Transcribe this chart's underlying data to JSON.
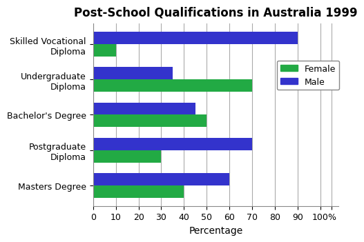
{
  "title": "Post-School Qualifications in Australia 1999",
  "categories": [
    "Skilled Vocational\nDiploma",
    "Undergraduate\nDiploma",
    "Bachelor's Degree",
    "Postgraduate\nDiploma",
    "Masters Degree"
  ],
  "female_values": [
    10,
    70,
    50,
    30,
    40
  ],
  "male_values": [
    90,
    35,
    45,
    70,
    60
  ],
  "female_color": "#22aa44",
  "male_color": "#3333cc",
  "xlabel": "Percentage",
  "xticks": [
    0,
    10,
    20,
    30,
    40,
    50,
    60,
    70,
    80,
    90,
    100
  ],
  "xtick_labels": [
    "0",
    "10",
    "20",
    "30",
    "40",
    "50",
    "60",
    "70",
    "80",
    "90",
    "100",
    "%"
  ],
  "legend_labels": [
    "Female",
    "Male"
  ],
  "title_fontsize": 12,
  "axis_label_fontsize": 10,
  "tick_fontsize": 9,
  "bar_height": 0.35,
  "background_color": "#ffffff",
  "grid_color": "#aaaaaa"
}
